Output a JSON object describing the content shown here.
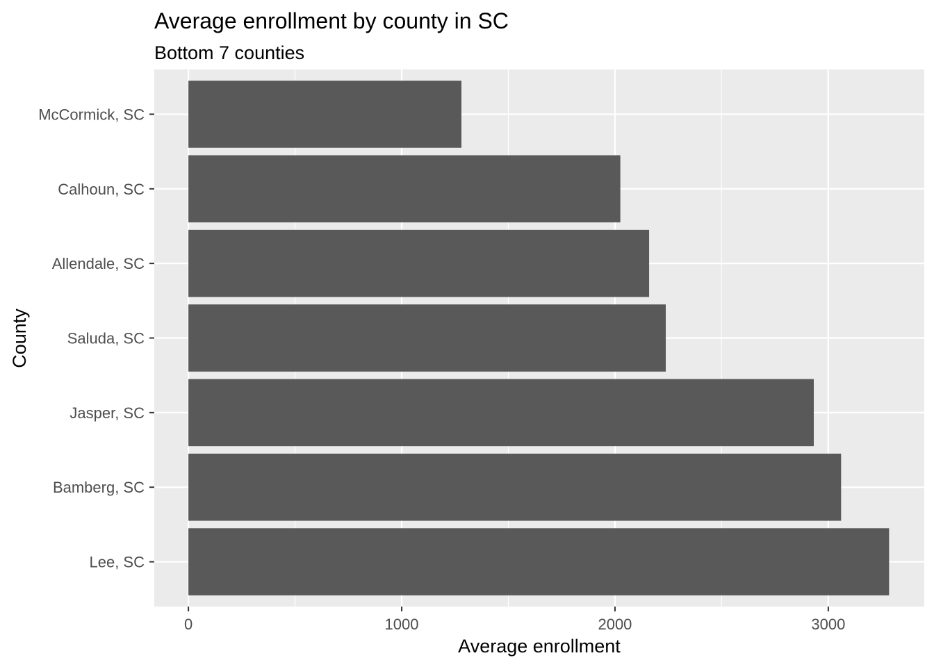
{
  "chart_data": {
    "type": "bar",
    "orientation": "horizontal",
    "title": "Average enrollment by county in SC",
    "subtitle": "Bottom 7 counties",
    "xlabel": "Average enrollment",
    "ylabel": "County",
    "categories": [
      "McCormick, SC",
      "Calhoun, SC",
      "Allendale, SC",
      "Saluda, SC",
      "Jasper, SC",
      "Bamberg, SC",
      "Lee, SC"
    ],
    "values": [
      1280,
      2025,
      2160,
      2238,
      2932,
      3060,
      3285
    ],
    "xlim": [
      -160,
      3450
    ],
    "xticks": [
      0,
      1000,
      2000,
      3000
    ],
    "xtick_labels": [
      "0",
      "1000",
      "2000",
      "3000"
    ],
    "grid": true,
    "legend": "none",
    "colors": {
      "bar": "#595959",
      "panel": "#ebebeb",
      "gridline": "#ffffff",
      "tick_text": "#4d4d4d",
      "tick_mark": "#333333"
    }
  }
}
